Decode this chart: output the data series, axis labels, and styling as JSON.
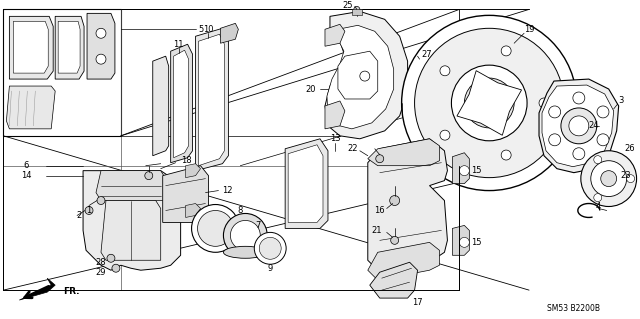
{
  "bg_color": "#ffffff",
  "line_color": "#000000",
  "diagram_code": "SM53 B2200B",
  "figsize": [
    6.4,
    3.19
  ],
  "dpi": 100,
  "gray_light": "#c8c8c8",
  "gray_medium": "#a0a0a0",
  "gray_dark": "#707070"
}
